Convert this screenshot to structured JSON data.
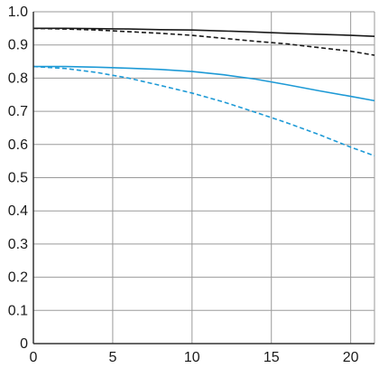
{
  "chart_data": {
    "type": "line",
    "title": "",
    "xlabel": "",
    "ylabel": "",
    "xlim": [
      0,
      21.5
    ],
    "ylim": [
      0,
      1.0
    ],
    "x_ticks": [
      0,
      5,
      10,
      15,
      20
    ],
    "y_ticks": [
      0,
      0.1,
      0.2,
      0.3,
      0.4,
      0.5,
      0.6,
      0.7,
      0.8,
      0.9,
      1.0
    ],
    "x_tick_labels": [
      "0",
      "5",
      "10",
      "15",
      "20"
    ],
    "y_tick_labels": [
      "0",
      "0.1",
      "0.2",
      "0.3",
      "0.4",
      "0.5",
      "0.6",
      "0.7",
      "0.8",
      "0.9",
      "1.0"
    ],
    "grid": true,
    "legend": false,
    "series": [
      {
        "color": "#1a1a1a",
        "dash": "solid",
        "x": [
          0,
          2,
          4,
          6,
          8,
          10,
          12,
          14,
          16,
          18,
          20,
          21.5
        ],
        "y": [
          0.95,
          0.95,
          0.949,
          0.948,
          0.946,
          0.945,
          0.942,
          0.939,
          0.935,
          0.932,
          0.929,
          0.926
        ]
      },
      {
        "color": "#1a1a1a",
        "dash": "dashed",
        "x": [
          0,
          2,
          4,
          6,
          8,
          10,
          12,
          14,
          16,
          18,
          20,
          21.5
        ],
        "y": [
          0.95,
          0.948,
          0.945,
          0.94,
          0.935,
          0.929,
          0.92,
          0.911,
          0.903,
          0.892,
          0.881,
          0.869
        ]
      },
      {
        "color": "#1e9ad6",
        "dash": "solid",
        "x": [
          0,
          2,
          4,
          6,
          8,
          10,
          12,
          14,
          16,
          18,
          20,
          21.5
        ],
        "y": [
          0.835,
          0.835,
          0.833,
          0.83,
          0.826,
          0.82,
          0.81,
          0.797,
          0.78,
          0.762,
          0.745,
          0.732
        ]
      },
      {
        "color": "#1e9ad6",
        "dash": "dashed",
        "x": [
          0,
          2,
          4,
          6,
          8,
          10,
          12,
          14,
          16,
          18,
          20,
          21.5
        ],
        "y": [
          0.835,
          0.829,
          0.817,
          0.8,
          0.778,
          0.755,
          0.728,
          0.697,
          0.665,
          0.63,
          0.592,
          0.566
        ]
      }
    ]
  }
}
